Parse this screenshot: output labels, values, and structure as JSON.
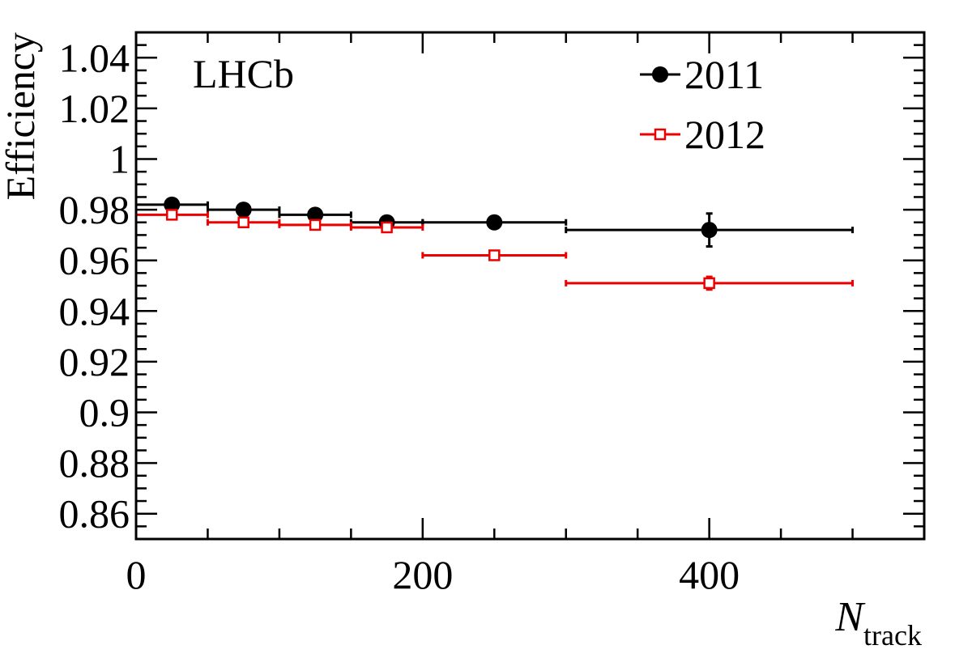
{
  "chart_data": {
    "type": "scatter",
    "experiment_label": "LHCb",
    "ylabel": "Efficiency",
    "xlabel_main": "N",
    "xlabel_sub": "track",
    "xlim": [
      0,
      550
    ],
    "ylim": [
      0.85,
      1.05
    ],
    "xticks": [
      0,
      200,
      400
    ],
    "yticks": [
      0.86,
      0.88,
      0.9,
      0.92,
      0.94,
      0.96,
      0.98,
      1,
      1.02,
      1.04
    ],
    "legend_position": "top-right",
    "series": [
      {
        "name": "2011",
        "color": "#000000",
        "marker": "filled-circle",
        "points": [
          {
            "x": 25,
            "xlo": 0,
            "xhi": 50,
            "y": 0.982,
            "yerr": 0.0005
          },
          {
            "x": 75,
            "xlo": 50,
            "xhi": 100,
            "y": 0.98,
            "yerr": 0.0005
          },
          {
            "x": 125,
            "xlo": 100,
            "xhi": 150,
            "y": 0.978,
            "yerr": 0.0005
          },
          {
            "x": 175,
            "xlo": 150,
            "xhi": 200,
            "y": 0.975,
            "yerr": 0.0005
          },
          {
            "x": 250,
            "xlo": 200,
            "xhi": 300,
            "y": 0.975,
            "yerr": 0.0008
          },
          {
            "x": 400,
            "xlo": 300,
            "xhi": 500,
            "y": 0.972,
            "yerr": 0.0065
          }
        ]
      },
      {
        "name": "2012",
        "color": "#ee0000",
        "marker": "open-square",
        "points": [
          {
            "x": 25,
            "xlo": 0,
            "xhi": 50,
            "y": 0.978,
            "yerr": 0.0005
          },
          {
            "x": 75,
            "xlo": 50,
            "xhi": 100,
            "y": 0.975,
            "yerr": 0.0005
          },
          {
            "x": 125,
            "xlo": 100,
            "xhi": 150,
            "y": 0.974,
            "yerr": 0.0005
          },
          {
            "x": 175,
            "xlo": 150,
            "xhi": 200,
            "y": 0.973,
            "yerr": 0.0005
          },
          {
            "x": 250,
            "xlo": 200,
            "xhi": 300,
            "y": 0.962,
            "yerr": 0.0008
          },
          {
            "x": 400,
            "xlo": 300,
            "xhi": 500,
            "y": 0.951,
            "yerr": 0.0025
          }
        ]
      }
    ]
  }
}
